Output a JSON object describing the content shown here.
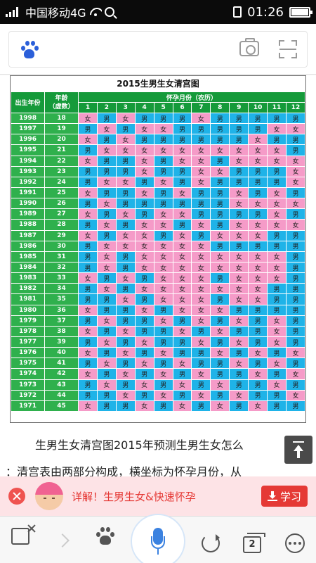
{
  "status_bar": {
    "carrier": "中国移动4G",
    "time": "01:26"
  },
  "search": {
    "logo_icon": "baidu-paw-icon",
    "camera_icon": "camera-icon",
    "scan_icon": "scan-icon"
  },
  "chart_data": {
    "type": "table",
    "title": "2015生男生女清宫图",
    "headers": {
      "birth_year": "出生年份",
      "age_line1": "年龄",
      "age_line2": "（虚数）",
      "months_title": "怀孕月份（农历）",
      "months": [
        "1",
        "2",
        "3",
        "4",
        "5",
        "6",
        "7",
        "8",
        "9",
        "10",
        "11",
        "12"
      ]
    },
    "legend": {
      "girl": "女",
      "boy": "男"
    },
    "colors": {
      "girl": "#f59bc8",
      "boy": "#1fb3e8",
      "header": "#159a3a"
    },
    "rows": [
      {
        "year": "1998",
        "age": "18",
        "cells": "女男女男男男女男男男男男"
      },
      {
        "year": "1997",
        "age": "19",
        "cells": "男女男女女男男男男男女女"
      },
      {
        "year": "1996",
        "age": "20",
        "cells": "女男女男男男男男男女男男"
      },
      {
        "year": "1995",
        "age": "21",
        "cells": "男女女女女女女女女女女男"
      },
      {
        "year": "1994",
        "age": "22",
        "cells": "女男男女男女女男女女女女"
      },
      {
        "year": "1993",
        "age": "23",
        "cells": "男男男女男男女女男男男女"
      },
      {
        "year": "1992",
        "age": "24",
        "cells": "男女女男女男女男男男男女"
      },
      {
        "year": "1991",
        "age": "25",
        "cells": "女男男女男女男男女男女男"
      },
      {
        "year": "1990",
        "age": "26",
        "cells": "男女男男男男男男女女女女"
      },
      {
        "year": "1989",
        "age": "27",
        "cells": "女男女男女女男男男男女男"
      },
      {
        "year": "1988",
        "age": "28",
        "cells": "男女男女女男女男女女女女"
      },
      {
        "year": "1987",
        "age": "29",
        "cells": "女男女女男女男女女女男男"
      },
      {
        "year": "1986",
        "age": "30",
        "cells": "男女女女女女女男男男男男"
      },
      {
        "year": "1985",
        "age": "31",
        "cells": "男女男女女女女女女女女男"
      },
      {
        "year": "1984",
        "age": "32",
        "cells": "男女男女女女女女女女女男"
      },
      {
        "year": "1983",
        "age": "33",
        "cells": "女男女男女女女男女女女男"
      },
      {
        "year": "1982",
        "age": "34",
        "cells": "男女男女女女女女女女男男"
      },
      {
        "year": "1981",
        "age": "35",
        "cells": "男男女男女女女男女女男男"
      },
      {
        "year": "1980",
        "age": "36",
        "cells": "女男男女男女女女男男男男"
      },
      {
        "year": "1979",
        "age": "37",
        "cells": "男女男男女男女男女男女男"
      },
      {
        "year": "1978",
        "age": "38",
        "cells": "女男女男男女男女男男女男"
      },
      {
        "year": "1977",
        "age": "39",
        "cells": "男女男女男男女男女男女男"
      },
      {
        "year": "1976",
        "age": "40",
        "cells": "女男女男女男男女男女男女"
      },
      {
        "year": "1975",
        "age": "41",
        "cells": "男女男女男女男男女男女男"
      },
      {
        "year": "1974",
        "age": "42",
        "cells": "女男女男女男女男男女男女"
      },
      {
        "year": "1973",
        "age": "43",
        "cells": "男女男女男女男女男男女男"
      },
      {
        "year": "1972",
        "age": "44",
        "cells": "男男女男女男女男女男男女"
      },
      {
        "year": "1971",
        "age": "45",
        "cells": "女男男女男女男女男女男男"
      }
    ]
  },
  "article": {
    "line1": "生男生女清宫图2015年预测生男生女怎么",
    "line2": "：清宫表由两部分构成，横坐标为怀孕月份，从"
  },
  "ad": {
    "text": "详解！生男生女&快速怀孕",
    "button": "学习"
  },
  "toolbar": {
    "tab_count": "2"
  }
}
